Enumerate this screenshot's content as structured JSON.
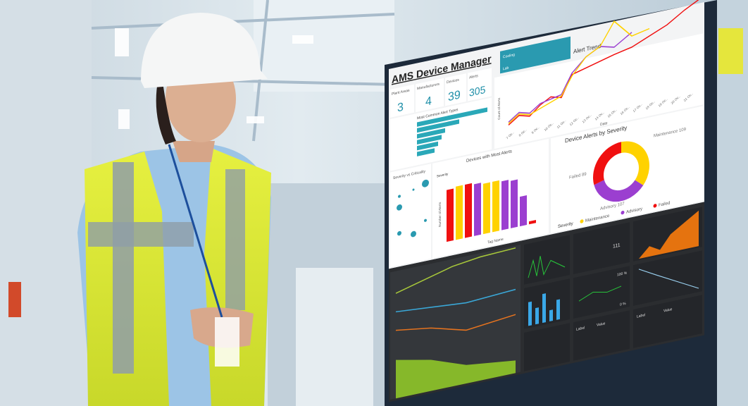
{
  "dashboard": {
    "title": "AMS Device Manager",
    "kpis": [
      {
        "label": "Plant Areas",
        "value": "3"
      },
      {
        "label": "Manufacturers",
        "value": "4"
      },
      {
        "label": "Devices",
        "value": "39"
      },
      {
        "label": "Alerts",
        "value": "305"
      }
    ],
    "alert_types_title": "Most Common Alert Types",
    "alert_trend_title": "Alert Trend",
    "alert_trend_xlabel": "Date",
    "alert_trend_ylabel": "Count of Alerts",
    "alert_trend_dates": [
      "7 Oc..",
      "8 Oc..",
      "9 Oc..",
      "10 Oc..",
      "11 Oc..",
      "12 Oc..",
      "13 Oc..",
      "14 Oc..",
      "15 Oc..",
      "16 Oc..",
      "17 Oc..",
      "18 Oc..",
      "19 Oc..",
      "20 Oc..",
      "21 Oc.."
    ],
    "top_bar_labels": [
      "Cooling",
      "Lab"
    ],
    "devices_title": "Devices with Most Alerts",
    "devices_xlabel": "Tag Name",
    "devices_ylabel": "Number of Alerts",
    "severity_label": "Severity",
    "severity_criticality_title": "Severity vs Criticality",
    "donut_title": "Device Alerts by Severity",
    "donut": [
      {
        "name": "Maintenance",
        "value": 109,
        "color": "#ffd200"
      },
      {
        "name": "Advisory",
        "value": 107,
        "color": "#9b3fd0"
      },
      {
        "name": "Failed",
        "value": 89,
        "color": "#f01010"
      }
    ],
    "donut_labels": [
      "Maintenance 109",
      "Advisory 107",
      "Failed 89"
    ],
    "legend": [
      "Maintenance",
      "Advisory",
      "Failed"
    ],
    "colors": {
      "accent": "#2a9ab0",
      "maintenance": "#ffd200",
      "advisory": "#9b3fd0",
      "failed": "#f01010",
      "dark_panel": "#2b2d30",
      "orange": "#e5730f",
      "green": "#27c33a"
    }
  },
  "monitor_panels": {
    "values": [
      "111",
      "100 %",
      "0 %"
    ],
    "table_headers": [
      "Label",
      "Value"
    ]
  }
}
